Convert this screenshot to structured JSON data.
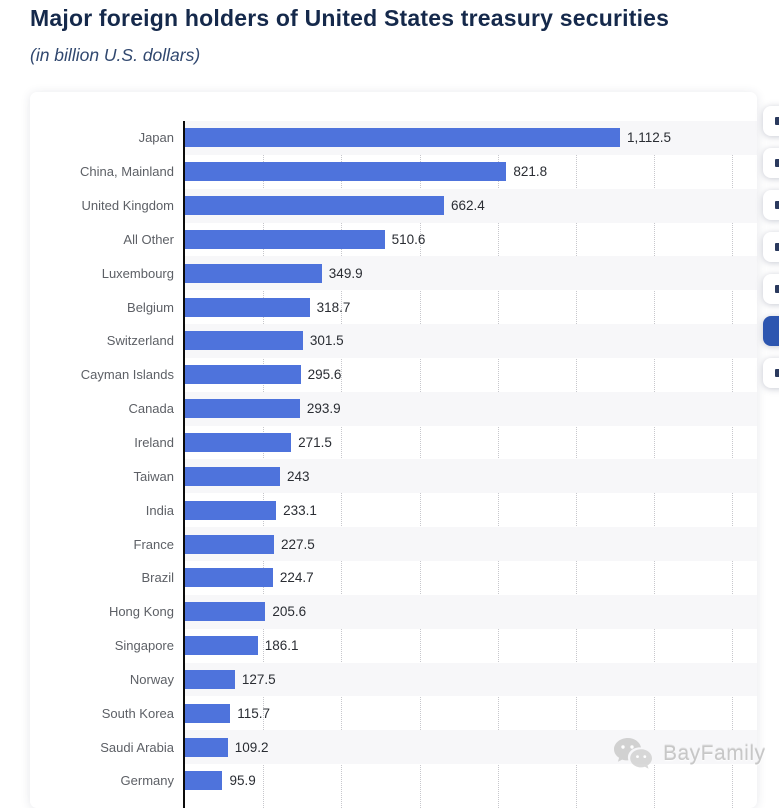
{
  "page": {
    "title": "Major foreign holders of United States treasury securities",
    "subtitle": "(in billion U.S. dollars)"
  },
  "chart_data": {
    "type": "bar",
    "orientation": "horizontal",
    "title": "Major foreign holders of United States treasury securities",
    "subtitle": "(in billion U.S. dollars)",
    "xlabel": "",
    "ylabel": "",
    "unit": "billion U.S. dollars",
    "categories": [
      "Japan",
      "China, Mainland",
      "United Kingdom",
      "All Other",
      "Luxembourg",
      "Belgium",
      "Switzerland",
      "Cayman Islands",
      "Canada",
      "Ireland",
      "Taiwan",
      "India",
      "France",
      "Brazil",
      "Hong Kong",
      "Singapore",
      "Norway",
      "South Korea",
      "Saudi Arabia",
      "Germany"
    ],
    "values": [
      1112.5,
      821.8,
      662.4,
      510.6,
      349.9,
      318.7,
      301.5,
      295.6,
      293.9,
      271.5,
      243,
      233.1,
      227.5,
      224.7,
      205.6,
      186.1,
      127.5,
      115.7,
      109.2,
      95.9
    ],
    "value_labels": [
      "1,112.5",
      "821.8",
      "662.4",
      "510.6",
      "349.9",
      "318.7",
      "301.5",
      "295.6",
      "293.9",
      "271.5",
      "243",
      "233.1",
      "227.5",
      "224.7",
      "205.6",
      "186.1",
      "127.5",
      "115.7",
      "109.2",
      "95.9"
    ],
    "xlim": [
      0,
      1500
    ],
    "gridline_values": [
      200,
      400,
      600,
      800,
      1000,
      1200,
      1400
    ],
    "grid": "dotted-vertical",
    "legend": "none",
    "bar_color": "#4e73dc",
    "row_stripe_color": "#f7f7f9",
    "axis_color": "#0b0b0b"
  },
  "toolbar": {
    "active_color": "#2d56b0",
    "buttons": [
      {
        "name": "toolbar-button-1",
        "active": false
      },
      {
        "name": "toolbar-button-2",
        "active": false
      },
      {
        "name": "toolbar-button-3",
        "active": false
      },
      {
        "name": "toolbar-button-4",
        "active": false
      },
      {
        "name": "toolbar-button-5",
        "active": false
      },
      {
        "name": "toolbar-button-6",
        "active": true
      },
      {
        "name": "toolbar-button-7",
        "active": false
      }
    ]
  },
  "watermark": {
    "text": "BayFamily"
  }
}
